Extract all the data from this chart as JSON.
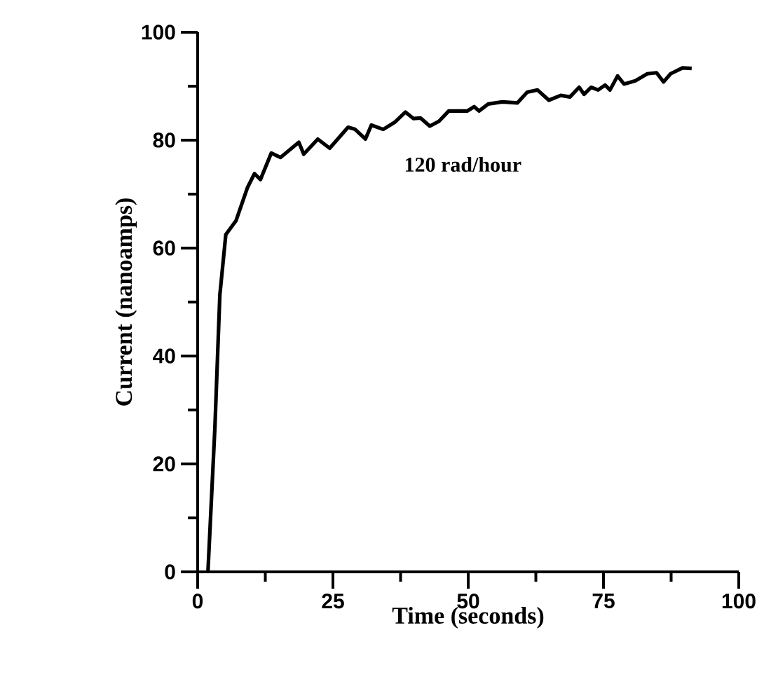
{
  "chart_data": {
    "type": "line",
    "xlabel": "Time (seconds)",
    "ylabel": "Current (nanoamps)",
    "annotations": [
      "120 rad/hour"
    ],
    "xlim": [
      0,
      100
    ],
    "xticks": [
      0,
      25,
      50,
      75,
      100
    ],
    "ylim": [
      0,
      100
    ],
    "yticks": [
      0,
      20,
      40,
      60,
      80,
      100
    ],
    "marker": "none",
    "line_style": "solid",
    "series": [
      {
        "color": "#000000",
        "x": [
          1.9,
          3.2,
          4.1,
          5.2,
          7.1,
          9.2,
          10.5,
          11.6,
          13.6,
          15.3,
          18.7,
          19.6,
          22.2,
          24.4,
          27.8,
          29.1,
          31.0,
          32.1,
          34.3,
          36.4,
          38.4,
          39.9,
          41.2,
          42.9,
          44.6,
          46.4,
          49.8,
          51.1,
          52.0,
          53.7,
          56.3,
          59.1,
          60.9,
          62.8,
          64.9,
          67.1,
          68.8,
          70.5,
          71.4,
          72.7,
          74.0,
          75.3,
          76.2,
          77.6,
          78.8,
          80.9,
          83.1,
          84.8,
          86.1,
          87.4,
          89.6,
          91.3
        ],
        "values": [
          0,
          27.1,
          51.3,
          62.5,
          65.1,
          71.2,
          73.8,
          72.7,
          77.6,
          76.8,
          79.6,
          77.4,
          80.2,
          78.5,
          82.4,
          82.0,
          80.2,
          82.8,
          82.0,
          83.3,
          85.2,
          84.0,
          84.1,
          82.6,
          83.5,
          85.4,
          85.4,
          86.2,
          85.4,
          86.7,
          87.1,
          86.9,
          88.9,
          89.3,
          87.4,
          88.3,
          88.0,
          89.8,
          88.5,
          89.8,
          89.3,
          90.2,
          89.3,
          91.9,
          90.4,
          91.0,
          92.3,
          92.5,
          90.8,
          92.3,
          93.4,
          93.3
        ]
      }
    ]
  }
}
